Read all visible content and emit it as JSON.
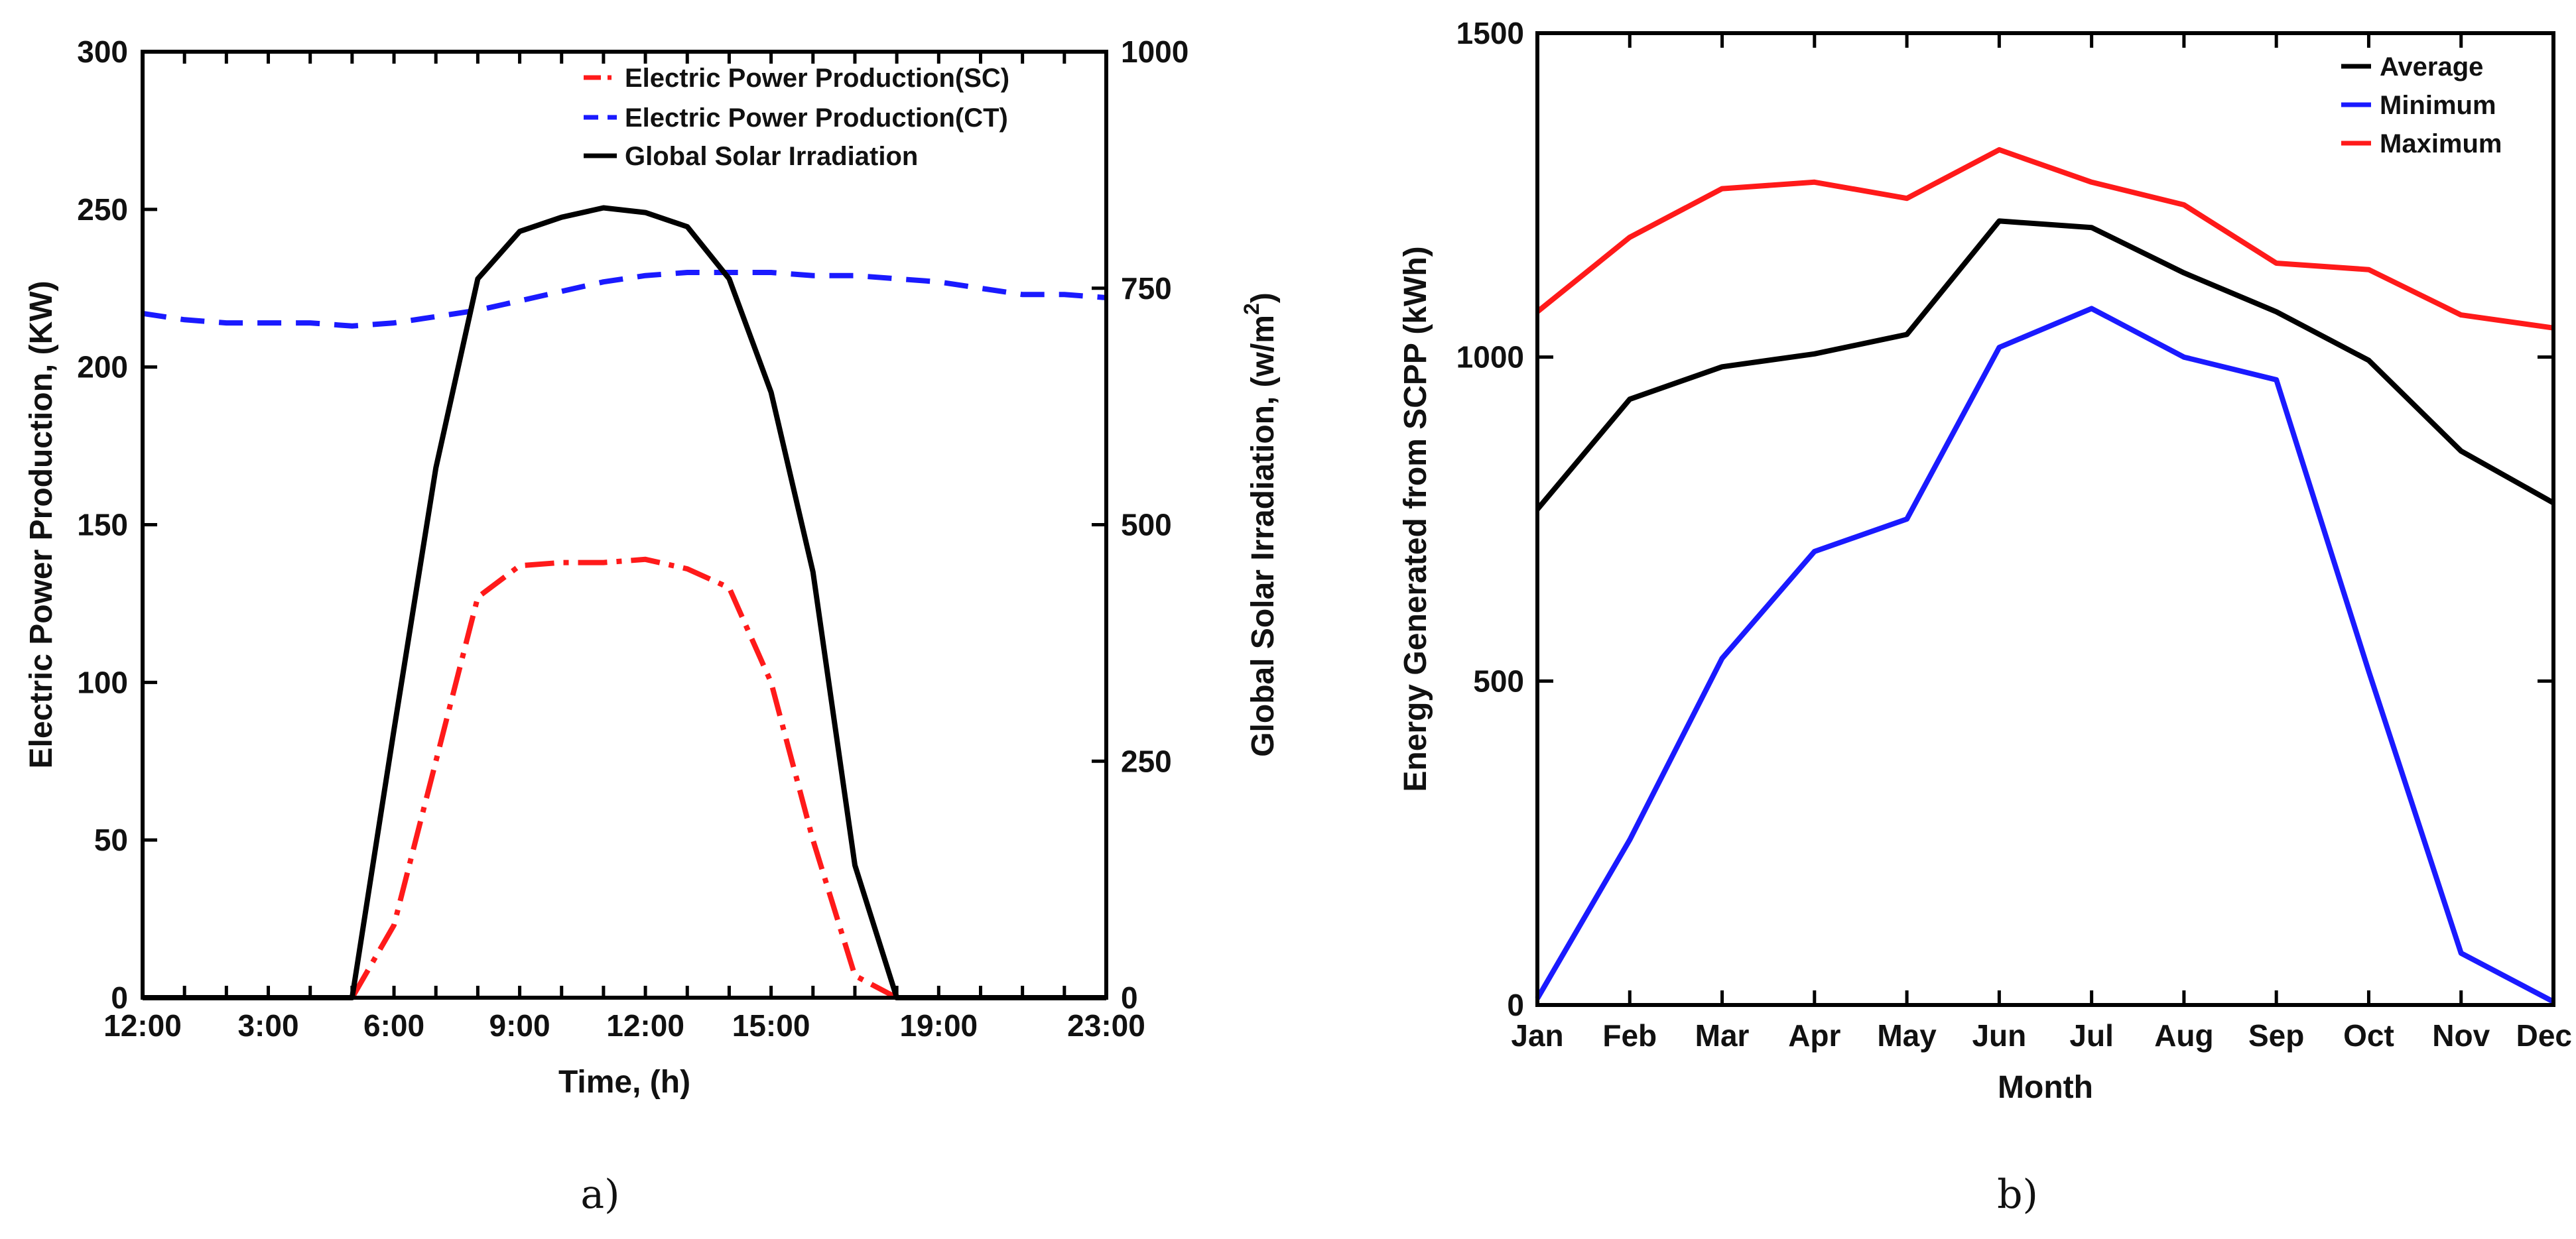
{
  "colors": {
    "sc": "#ff1a1a",
    "ct": "#1a1aff",
    "gsi": "#000000",
    "avg": "#000000",
    "min": "#1a1aff",
    "max": "#ff1a1a"
  },
  "chart_data": [
    {
      "type": "line",
      "caption": "a)",
      "xlabel": "Time, (h)",
      "ylabel": "Electric Power Production, (KW)",
      "y2label_main": "Global Solar Irradiation, (w/m",
      "y2label_sup": "2",
      "y2label_end": ")",
      "xlim": [
        0,
        23
      ],
      "ylim": [
        0,
        300
      ],
      "y2lim": [
        0,
        1000
      ],
      "xticks": [
        0,
        3,
        6,
        9,
        12,
        15,
        19,
        23
      ],
      "xtick_labels": [
        "12:00",
        "3:00",
        "6:00",
        "9:00",
        "12:00",
        "15:00",
        "19:00",
        "23:00"
      ],
      "yticks": [
        0,
        50,
        100,
        150,
        200,
        250,
        300
      ],
      "yticks2": [
        0,
        250,
        500,
        750,
        1000
      ],
      "legend_position": "top-right",
      "series": [
        {
          "name": "Electric Power Production(SC)",
          "axis": "left",
          "style": "dashdot",
          "x": [
            0,
            1,
            2,
            3,
            4,
            5,
            6,
            7,
            8,
            9,
            10,
            11,
            12,
            13,
            14,
            15,
            16,
            17,
            18,
            19,
            20,
            21,
            22,
            23
          ],
          "y": [
            0,
            0,
            0,
            0,
            0,
            0,
            23,
            75,
            127,
            137,
            138,
            138,
            139,
            136,
            130,
            100,
            50,
            7,
            0,
            0,
            0,
            0,
            0,
            0
          ]
        },
        {
          "name": "Electric Power Production(CT)",
          "axis": "left",
          "style": "dashed",
          "x": [
            0,
            1,
            2,
            3,
            4,
            5,
            6,
            7,
            8,
            9,
            10,
            11,
            12,
            13,
            14,
            15,
            16,
            17,
            18,
            19,
            20,
            21,
            22,
            23
          ],
          "y": [
            217,
            215,
            214,
            214,
            214,
            213,
            214,
            216,
            218,
            221,
            224,
            227,
            229,
            230,
            230,
            230,
            229,
            229,
            228,
            227,
            225,
            223,
            223,
            222
          ]
        },
        {
          "name": "Global Solar Irradiation",
          "axis": "right",
          "style": "solid",
          "x": [
            0,
            1,
            2,
            3,
            4,
            5,
            6,
            7,
            8,
            9,
            10,
            11,
            12,
            13,
            14,
            15,
            16,
            17,
            18,
            19,
            20,
            21,
            22,
            23
          ],
          "y": [
            0,
            0,
            0,
            0,
            0,
            0,
            283,
            560,
            760,
            810,
            825,
            835,
            830,
            815,
            760,
            640,
            450,
            140,
            0,
            0,
            0,
            0,
            0,
            0
          ]
        }
      ]
    },
    {
      "type": "line",
      "caption": "b)",
      "xlabel": "Month",
      "ylabel": "Energy Generated from SCPP (kWh)",
      "categories": [
        "Jan",
        "Feb",
        "Mar",
        "Apr",
        "May",
        "Jun",
        "Jul",
        "Aug",
        "Sep",
        "Oct",
        "Nov",
        "Dec"
      ],
      "ylim": [
        0,
        1500
      ],
      "yticks": [
        0,
        500,
        1000,
        1500
      ],
      "legend_position": "top-right",
      "series": [
        {
          "name": "Average",
          "values": [
            765,
            935,
            985,
            1005,
            1035,
            1210,
            1200,
            1130,
            1070,
            995,
            855,
            775
          ]
        },
        {
          "name": "Minimum",
          "values": [
            10,
            255,
            535,
            700,
            750,
            1015,
            1075,
            1000,
            965,
            515,
            80,
            5
          ]
        },
        {
          "name": "Maximum",
          "values": [
            1070,
            1185,
            1260,
            1270,
            1245,
            1320,
            1270,
            1235,
            1145,
            1135,
            1065,
            1045
          ]
        }
      ]
    }
  ]
}
